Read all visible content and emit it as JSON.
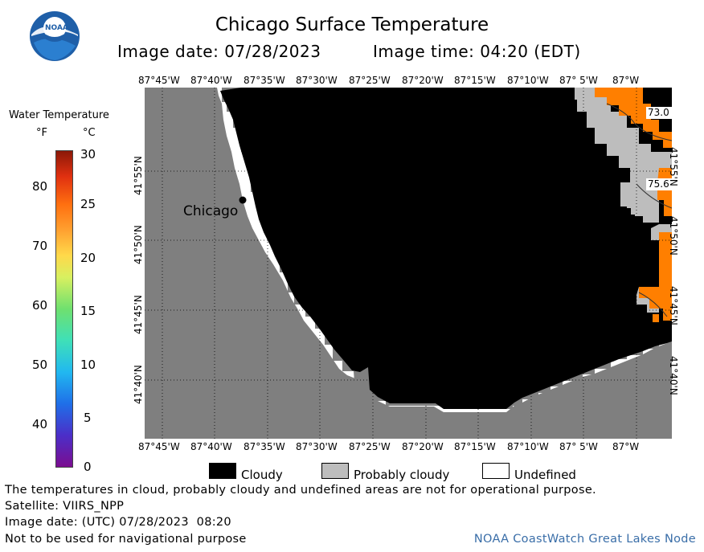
{
  "header": {
    "title": "Chicago Surface Temperature",
    "image_date": "Image date: 07/28/2023",
    "image_time": "Image time: 04:20 (EDT)",
    "logo_text": "NOAA"
  },
  "scale": {
    "title": "Water Temperature",
    "unit_f": "°F",
    "unit_c": "°C",
    "f_ticks": [
      "80",
      "70",
      "60",
      "50",
      "40"
    ],
    "c_ticks": [
      "30",
      "25",
      "20",
      "15",
      "10",
      "5",
      "0"
    ]
  },
  "map": {
    "top_lon": [
      "87°45'W",
      "87°40'W",
      "87°35'W",
      "87°30'W",
      "87°25'W",
      "87°20'W",
      "87°15'W",
      "87°10'W",
      "87° 5'W",
      "87°W"
    ],
    "bottom_lon": [
      "87°45'W",
      "87°40'W",
      "87°35'W",
      "87°30'W",
      "87°25'W",
      "87°20'W",
      "87°15'W",
      "87°10'W",
      "87° 5'W",
      "87°W"
    ],
    "lat": [
      "41°55'N",
      "41°50'N",
      "41°45'N",
      "41°40'N"
    ],
    "city": "Chicago",
    "readings": [
      "73.0",
      "75.6"
    ],
    "colors": {
      "land": "#7f7f7f",
      "cloudy": "#000000",
      "probably_cloudy": "#bdbdbd",
      "undefined": "#ffffff",
      "warm": "#ff7f00"
    }
  },
  "legend": {
    "cloudy": "Cloudy",
    "probably_cloudy": "Probably cloudy",
    "undefined": "Undefined"
  },
  "footer": {
    "disclaimer": "The temperatures in cloud, probably cloudy and undefined areas are not for operational purpose.",
    "satellite": "Satellite: VIIRS_NPP",
    "utc_date": "Image date: (UTC) 07/28/2023  08:20",
    "nav_warning": "Not to be used for navigational purpose",
    "credit": "NOAA CoastWatch Great Lakes Node"
  }
}
